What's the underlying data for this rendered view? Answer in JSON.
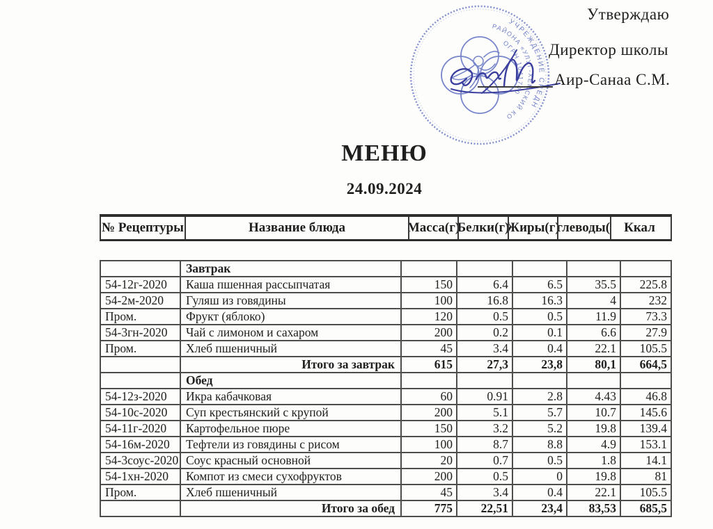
{
  "colors": {
    "stamp_blue": "#5a6cc0",
    "signature_blue": "#3b3f9e",
    "ink": "#1f1f1f",
    "table_border": "#4d4d4d"
  },
  "approval": {
    "title": "Утверждаю",
    "role": "Директор школы",
    "name": "Аир-Санаа С.М."
  },
  "stamp": {
    "ring1": "УЧРЕЖДЕНИЕ СРЕДН",
    "ring2": "РАЙОНА «УЛУГ-ХЕМСКИЙ КО",
    "ring3": "ОГРН 1041700"
  },
  "title": "МЕНЮ",
  "date": "24.09.2024",
  "table": {
    "headers": [
      "№ Рецептуры",
      "Название блюда",
      "Масса(г)",
      "Белки(г)",
      "Жиры(г)",
      "Углеводы(г)",
      "Ккал"
    ],
    "sections": [
      {
        "name": "Завтрак",
        "rows": [
          [
            "54-12г-2020",
            "Каша пшенная рассыпчатая",
            "150",
            "6.4",
            "6.5",
            "35.5",
            "225.8"
          ],
          [
            "54-2м-2020",
            "Гуляш из говядины",
            "100",
            "16.8",
            "16.3",
            "4",
            "232"
          ],
          [
            "Пром.",
            "Фрукт (яблоко)",
            "120",
            "0.5",
            "0.5",
            "11.9",
            "73.3"
          ],
          [
            "54-3гн-2020",
            "Чай с лимоном и сахаром",
            "200",
            "0.2",
            "0.1",
            "6.6",
            "27.9"
          ],
          [
            "Пром.",
            "Хлеб пшеничный",
            "45",
            "3.4",
            "0.4",
            "22.1",
            "105.5"
          ]
        ],
        "total_label": "Итого за завтрак",
        "totals": [
          "615",
          "27,3",
          "23,8",
          "80,1",
          "664,5"
        ]
      },
      {
        "name": "Обед",
        "rows": [
          [
            "54-12з-2020",
            "Икра кабачковая",
            "60",
            "0.91",
            "2.8",
            "4.43",
            "46.8"
          ],
          [
            "54-10с-2020",
            "Суп крестьянский с крупой",
            "200",
            "5.1",
            "5.7",
            "10.7",
            "145.6"
          ],
          [
            "54-11г-2020",
            "Картофельное пюре",
            "150",
            "3.2",
            "5.2",
            "19.8",
            "139.4"
          ],
          [
            "54-16м-2020",
            "Тефтели из говядины с рисом",
            "100",
            "8.7",
            "8.8",
            "4.9",
            "153.1"
          ],
          [
            "54-3соус-2020",
            "Соус красный основной",
            "20",
            "0.7",
            "0.5",
            "1.8",
            "14.1"
          ],
          [
            "54-1хн-2020",
            "Компот из смеси сухофруктов",
            "200",
            "0.5",
            "0",
            "19.8",
            "81"
          ],
          [
            "Пром.",
            "Хлеб пшеничный",
            "45",
            "3.4",
            "0.4",
            "22.1",
            "105.5"
          ]
        ],
        "total_label": "Итого за обед",
        "totals": [
          "775",
          "22,51",
          "23,4",
          "83,53",
          "685,5"
        ]
      }
    ]
  }
}
